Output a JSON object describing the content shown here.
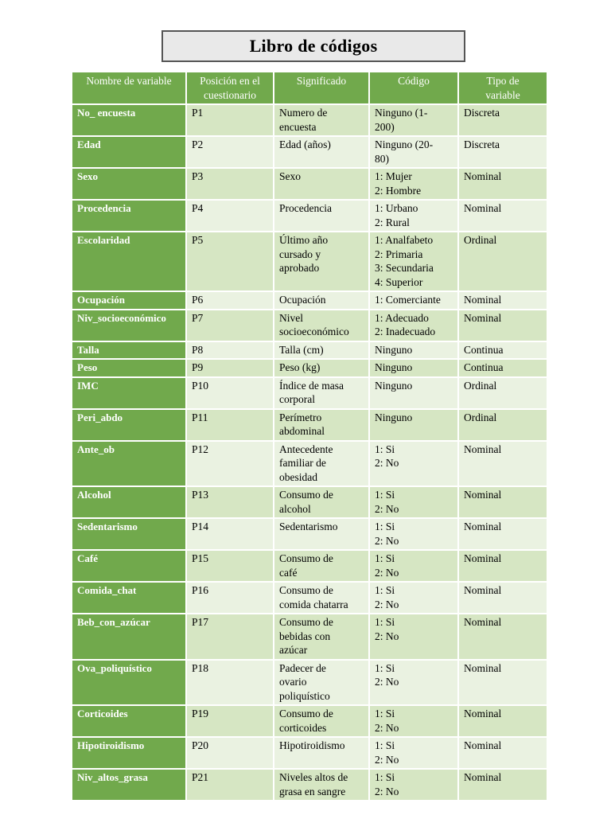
{
  "title": "Libro de códigos",
  "colors": {
    "header_green": "#71A94C",
    "row_band_green": "#D6E6C3",
    "row_pale_green": "#EAF2E1",
    "title_box_bg": "#E9E9E9",
    "title_box_border": "#555555"
  },
  "table": {
    "headers": [
      "Nombre de variable",
      "Posición en el\ncuestionario",
      "Significado",
      "Código",
      "Tipo de\nvariable"
    ],
    "rows": [
      {
        "name": "No_ encuesta",
        "pos": "P1",
        "significado": "Numero de\nencuesta",
        "codigo": "Ninguno (1-\n200)",
        "tipo": "Discreta"
      },
      {
        "name": "Edad",
        "pos": "P2",
        "significado": "Edad (años)",
        "codigo": "Ninguno (20-\n80)",
        "tipo": "Discreta"
      },
      {
        "name": "Sexo",
        "pos": "P3",
        "significado": "Sexo",
        "codigo": "1: Mujer\n2: Hombre",
        "tipo": "Nominal"
      },
      {
        "name": "Procedencia",
        "pos": "P4",
        "significado": "Procedencia",
        "codigo": "1: Urbano\n2: Rural",
        "tipo": "Nominal"
      },
      {
        "name": "Escolaridad",
        "pos": "P5",
        "significado": "Último año\ncursado y\naprobado",
        "codigo": "1: Analfabeto\n2: Primaria\n3: Secundaria\n4: Superior",
        "tipo": "Ordinal"
      },
      {
        "name": "Ocupación",
        "pos": "P6",
        "significado": "Ocupación",
        "codigo": "1: Comerciante",
        "tipo": "Nominal"
      },
      {
        "name": "Niv_socioeconómico",
        "pos": "P7",
        "significado": "Nivel\nsocioeconómico",
        "codigo": "1: Adecuado\n2: Inadecuado",
        "tipo": "Nominal"
      },
      {
        "name": "Talla",
        "pos": "P8",
        "significado": "Talla (cm)",
        "codigo": "Ninguno",
        "tipo": "Continua"
      },
      {
        "name": "Peso",
        "pos": "P9",
        "significado": "Peso (kg)",
        "codigo": "Ninguno",
        "tipo": "Continua"
      },
      {
        "name": "IMC",
        "pos": "P10",
        "significado": "Índice de masa\ncorporal",
        "codigo": "Ninguno",
        "tipo": "Ordinal"
      },
      {
        "name": "Peri_abdo",
        "pos": "P11",
        "significado": "Perímetro\nabdominal",
        "codigo": "Ninguno",
        "tipo": "Ordinal"
      },
      {
        "name": "Ante_ob",
        "pos": "P12",
        "significado": "Antecedente\nfamiliar de\nobesidad",
        "codigo": "1: Si\n2: No",
        "tipo": "Nominal"
      },
      {
        "name": "Alcohol",
        "pos": "P13",
        "significado": "Consumo de\nalcohol",
        "codigo": "1: Si\n2: No",
        "tipo": "Nominal"
      },
      {
        "name": "Sedentarismo",
        "pos": "P14",
        "significado": "Sedentarismo",
        "codigo": "1: Si\n2: No",
        "tipo": "Nominal"
      },
      {
        "name": "Café",
        "pos": "P15",
        "significado": "Consumo de\ncafé",
        "codigo": "1: Si\n2: No",
        "tipo": "Nominal"
      },
      {
        "name": "Comida_chat",
        "pos": "P16",
        "significado": "Consumo de\ncomida chatarra",
        "codigo": "1: Si\n2: No",
        "tipo": "Nominal"
      },
      {
        "name": "Beb_con_azúcar",
        "pos": "P17",
        "significado": "Consumo de\nbebidas con\nazúcar",
        "codigo": "1: Si\n2: No",
        "tipo": "Nominal"
      },
      {
        "name": "Ova_poliquístico",
        "pos": "P18",
        "significado": "Padecer de\novario\npoliquístico",
        "codigo": "1: Si\n2: No",
        "tipo": "Nominal"
      },
      {
        "name": "Corticoides",
        "pos": "P19",
        "significado": "Consumo de\ncorticoides",
        "codigo": "1: Si\n2: No",
        "tipo": "Nominal"
      },
      {
        "name": "Hipotiroidismo",
        "pos": "P20",
        "significado": "Hipotiroidismo",
        "codigo": "1: Si\n2: No",
        "tipo": "Nominal"
      },
      {
        "name": "Niv_altos_grasa",
        "pos": "P21",
        "significado": "Niveles altos de\ngrasa en sangre",
        "codigo": "1: Si\n2: No",
        "tipo": "Nominal"
      }
    ]
  }
}
